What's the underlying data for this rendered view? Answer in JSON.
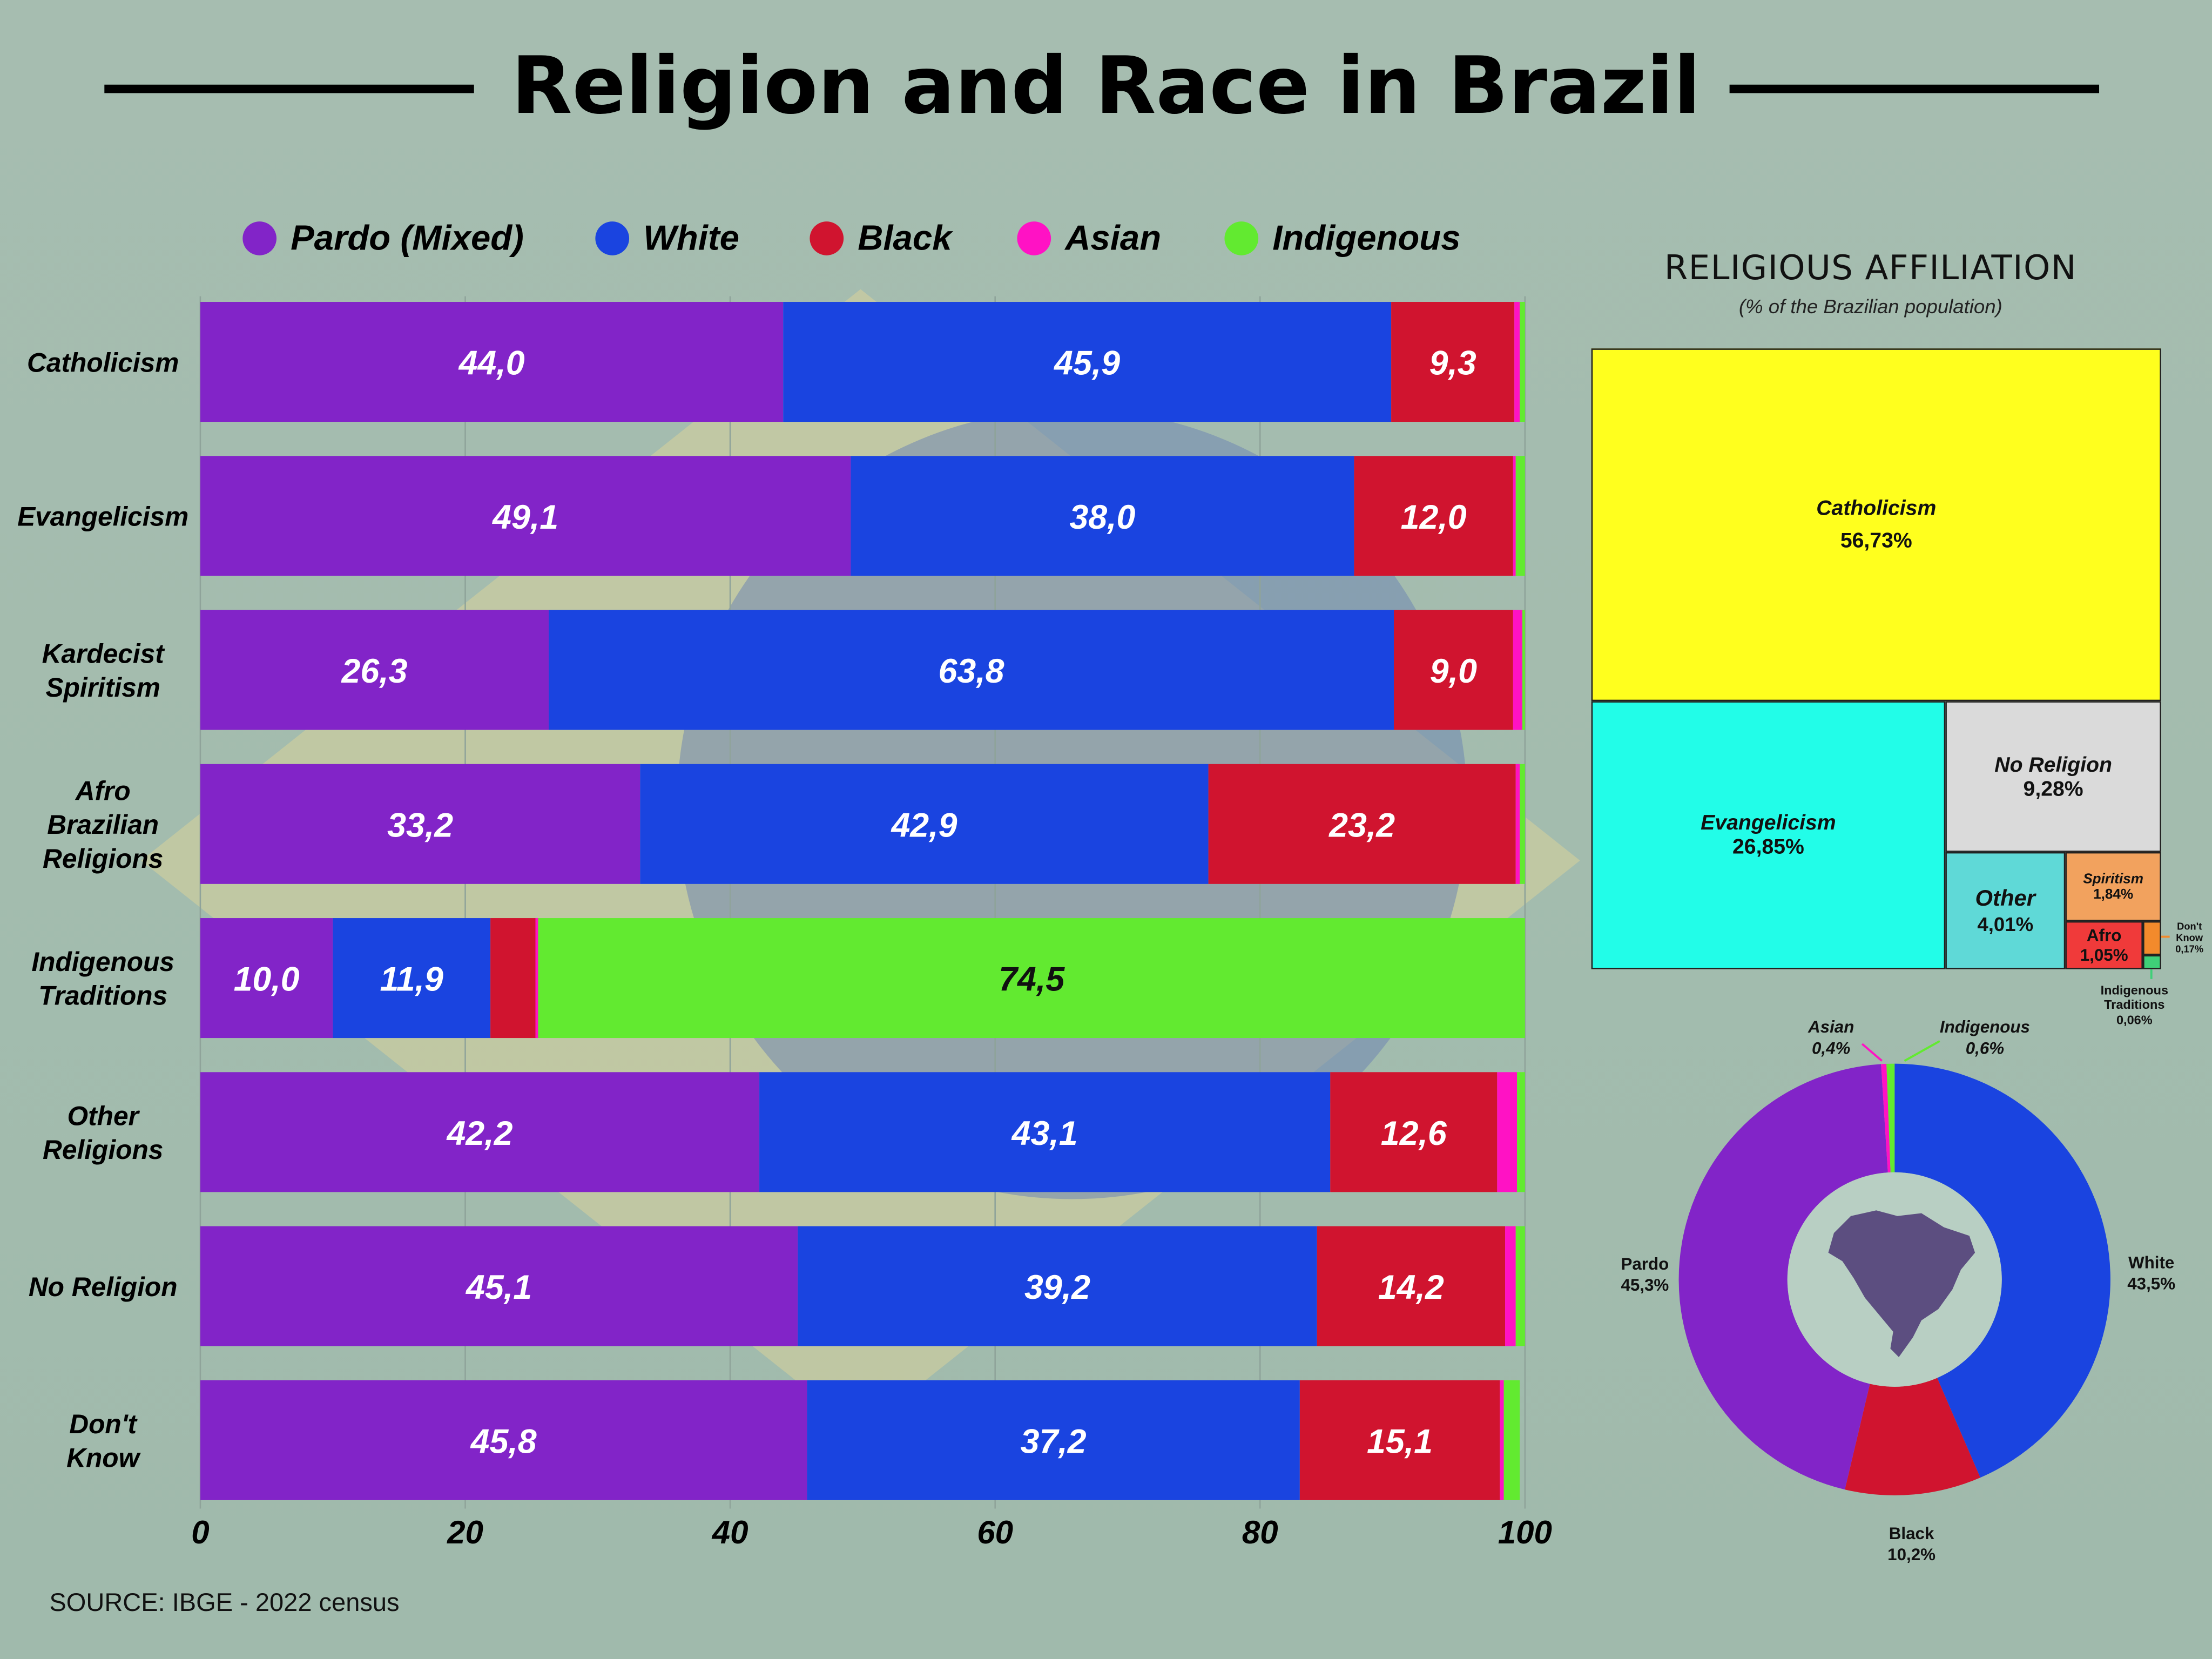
{
  "title": "Religion and Race in Brazil",
  "legend": [
    {
      "label": "Pardo (Mixed)",
      "color": "#8224c8"
    },
    {
      "label": "White",
      "color": "#1a44e0"
    },
    {
      "label": "Black",
      "color": "#d0142f"
    },
    {
      "label": "Asian",
      "color": "#ff12c4"
    },
    {
      "label": "Indigenous",
      "color": "#62ea30"
    }
  ],
  "source": "SOURCE: IBGE - 2022 census",
  "chart_data": [
    {
      "type": "bar",
      "orientation": "horizontal",
      "stacked": true,
      "categories": [
        "Catholicism",
        "Evangelicism",
        "Kardecist Spiritism",
        "Afro Brazilian Religions",
        "Indigenous Traditions",
        "Other Religions",
        "No Religion",
        "Don't Know"
      ],
      "category_label_lines": [
        [
          "Catholicism"
        ],
        [
          "Evangelicism"
        ],
        [
          "Kardecist",
          "Spiritism"
        ],
        [
          "Afro",
          "Brazilian",
          "Religions"
        ],
        [
          "Indigenous",
          "Traditions"
        ],
        [
          "Other",
          "Religions"
        ],
        [
          "No Religion"
        ],
        [
          "Don't",
          "Know"
        ]
      ],
      "series": [
        {
          "name": "Pardo (Mixed)",
          "color": "#8224c8",
          "values": [
            44.0,
            49.1,
            26.3,
            33.2,
            10.0,
            42.2,
            45.1,
            45.8
          ],
          "labels": [
            "44,0",
            "49,1",
            "26,3",
            "33,2",
            "10,0",
            "42,2",
            "45,1",
            "45,8"
          ]
        },
        {
          "name": "White",
          "color": "#1a44e0",
          "values": [
            45.9,
            38.0,
            63.8,
            42.9,
            11.9,
            43.1,
            39.2,
            37.2
          ],
          "labels": [
            "45,9",
            "38,0",
            "63,8",
            "42,9",
            "11,9",
            "43,1",
            "39,2",
            "37,2"
          ]
        },
        {
          "name": "Black",
          "color": "#d0142f",
          "values": [
            9.3,
            12.0,
            9.0,
            23.2,
            3.4,
            12.6,
            14.2,
            15.1
          ],
          "labels": [
            "9,3",
            "12,0",
            "9,0",
            "23,2",
            "",
            "12,6",
            "14,2",
            "15,1"
          ]
        },
        {
          "name": "Asian",
          "color": "#ff12c4",
          "values": [
            0.4,
            0.2,
            0.7,
            0.3,
            0.2,
            1.5,
            0.8,
            0.3
          ],
          "labels": [
            "",
            "",
            "",
            "",
            "",
            "",
            "",
            ""
          ]
        },
        {
          "name": "Indigenous",
          "color": "#62ea30",
          "values": [
            0.4,
            0.7,
            0.2,
            0.4,
            74.5,
            0.6,
            0.7,
            1.2
          ],
          "labels": [
            "",
            "",
            "",
            "",
            "74,5",
            "",
            "",
            ""
          ]
        }
      ],
      "xlim": [
        0,
        100
      ],
      "xticks": [
        "0",
        "20",
        "40",
        "60",
        "80",
        "100"
      ],
      "grid": true
    },
    {
      "type": "treemap",
      "title": "RELIGIOUS AFFILIATION",
      "subtitle": "(% of the Brazilian population)",
      "items": [
        {
          "name": "Catholicism",
          "value": 56.73,
          "label": "56,73%",
          "color": "#ffff1e"
        },
        {
          "name": "Evangelicism",
          "value": 26.85,
          "label": "26,85%",
          "color": "#22fde8"
        },
        {
          "name": "No Religion",
          "value": 9.28,
          "label": "9,28%",
          "color": "#dadada"
        },
        {
          "name": "Other",
          "value": 4.01,
          "label": "4,01%",
          "color": "#5fd9d7"
        },
        {
          "name": "Spiritism",
          "value": 1.84,
          "label": "1,84%",
          "color": "#f2a25e"
        },
        {
          "name": "Afro",
          "value": 1.05,
          "label": "1,05%",
          "color": "#f03a3a"
        },
        {
          "name": "Don't Know",
          "value": 0.17,
          "label": "0,17%",
          "color": "#f28a2c"
        },
        {
          "name": "Indigenous Traditions",
          "value": 0.06,
          "label": "0,06%",
          "color": "#3fcf78"
        }
      ]
    },
    {
      "type": "pie",
      "donut": true,
      "slices": [
        {
          "name": "White",
          "value": 43.5,
          "label": "43,5%",
          "color": "#1a44e0"
        },
        {
          "name": "Black",
          "value": 10.2,
          "label": "10,2%",
          "color": "#d0142f"
        },
        {
          "name": "Pardo",
          "value": 45.3,
          "label": "45,3%",
          "color": "#8224c8"
        },
        {
          "name": "Asian",
          "value": 0.4,
          "label": "0,4%",
          "color": "#ff12c4"
        },
        {
          "name": "Indigenous",
          "value": 0.6,
          "label": "0,6%",
          "color": "#62ea30"
        }
      ]
    }
  ]
}
